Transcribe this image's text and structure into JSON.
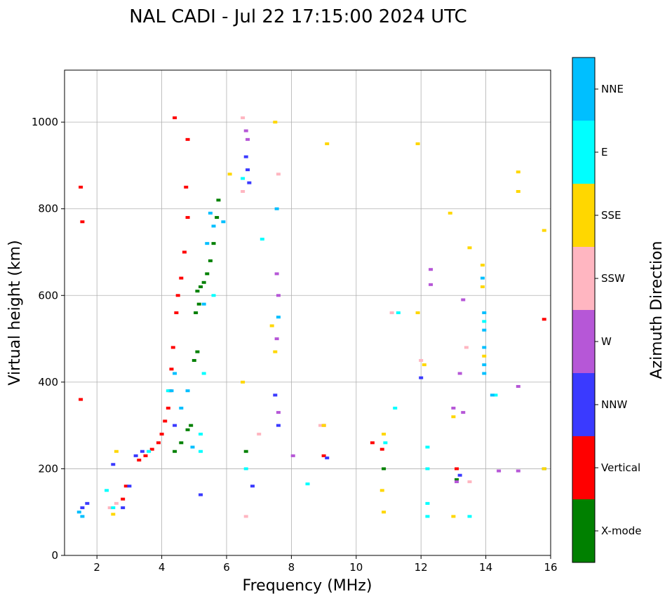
{
  "chart_data": {
    "type": "scatter",
    "title": "NAL CADI - Jul 22 17:15:00 2024 UTC",
    "xlabel": "Frequency (MHz)",
    "ylabel": "Virtual height (km)",
    "xlim": [
      1.0,
      16.0
    ],
    "ylim": [
      0,
      1120
    ],
    "xticks": [
      2,
      4,
      6,
      8,
      10,
      12,
      14,
      16
    ],
    "yticks": [
      0,
      200,
      400,
      600,
      800,
      1000
    ],
    "grid": true,
    "colorbar": {
      "label": "Azimuth Direction",
      "categories": [
        {
          "name": "X-mode",
          "color": "#008000"
        },
        {
          "name": "Vertical",
          "color": "#ff0000"
        },
        {
          "name": "NNW",
          "color": "#3a3aff"
        },
        {
          "name": "W",
          "color": "#b657d7"
        },
        {
          "name": "SSW",
          "color": "#ffb6c1"
        },
        {
          "name": "SSE",
          "color": "#ffd700"
        },
        {
          "name": "E",
          "color": "#00ffff"
        },
        {
          "name": "NNE",
          "color": "#00bfff"
        }
      ]
    },
    "series": [
      {
        "name": "X-mode",
        "points": [
          [
            5.1,
            610
          ],
          [
            5.2,
            620
          ],
          [
            5.3,
            630
          ],
          [
            5.4,
            650
          ],
          [
            5.5,
            680
          ],
          [
            5.6,
            720
          ],
          [
            5.7,
            780
          ],
          [
            5.75,
            820
          ],
          [
            5.0,
            450
          ],
          [
            5.1,
            470
          ],
          [
            5.05,
            560
          ],
          [
            5.15,
            580
          ],
          [
            4.9,
            300
          ],
          [
            4.8,
            290
          ],
          [
            4.6,
            260
          ],
          [
            4.4,
            240
          ],
          [
            10.85,
            200
          ],
          [
            13.1,
            175
          ],
          [
            15.8,
            200
          ],
          [
            6.6,
            240
          ]
        ]
      },
      {
        "name": "Vertical",
        "points": [
          [
            3.3,
            220
          ],
          [
            3.5,
            230
          ],
          [
            3.7,
            245
          ],
          [
            3.9,
            260
          ],
          [
            4.0,
            280
          ],
          [
            4.1,
            310
          ],
          [
            4.2,
            340
          ],
          [
            4.25,
            380
          ],
          [
            4.3,
            430
          ],
          [
            4.35,
            480
          ],
          [
            4.45,
            560
          ],
          [
            4.5,
            600
          ],
          [
            4.6,
            640
          ],
          [
            4.7,
            700
          ],
          [
            4.8,
            780
          ],
          [
            4.75,
            850
          ],
          [
            4.4,
            1010
          ],
          [
            4.8,
            960
          ],
          [
            1.5,
            360
          ],
          [
            1.5,
            850
          ],
          [
            1.55,
            770
          ],
          [
            2.8,
            130
          ],
          [
            2.9,
            160
          ],
          [
            9.0,
            230
          ],
          [
            10.5,
            260
          ],
          [
            10.8,
            245
          ],
          [
            13.1,
            200
          ],
          [
            15.8,
            545
          ],
          [
            9.0,
            300
          ]
        ]
      },
      {
        "name": "NNW",
        "points": [
          [
            1.55,
            110
          ],
          [
            1.7,
            120
          ],
          [
            2.5,
            210
          ],
          [
            2.8,
            110
          ],
          [
            3.0,
            160
          ],
          [
            3.2,
            230
          ],
          [
            3.4,
            240
          ],
          [
            4.4,
            300
          ],
          [
            6.65,
            890
          ],
          [
            6.6,
            920
          ],
          [
            6.7,
            860
          ],
          [
            7.6,
            300
          ],
          [
            7.5,
            370
          ],
          [
            9.1,
            225
          ],
          [
            12.0,
            410
          ],
          [
            13.2,
            185
          ],
          [
            6.8,
            160
          ],
          [
            5.2,
            140
          ]
        ]
      },
      {
        "name": "W",
        "points": [
          [
            6.6,
            980
          ],
          [
            6.65,
            960
          ],
          [
            7.55,
            650
          ],
          [
            7.6,
            600
          ],
          [
            7.55,
            500
          ],
          [
            12.3,
            660
          ],
          [
            12.3,
            625
          ],
          [
            13.3,
            590
          ],
          [
            13.3,
            330
          ],
          [
            13.2,
            420
          ],
          [
            13.0,
            340
          ],
          [
            13.1,
            170
          ],
          [
            14.4,
            195
          ],
          [
            15.0,
            195
          ],
          [
            15.0,
            390
          ],
          [
            8.05,
            230
          ],
          [
            7.6,
            330
          ]
        ]
      },
      {
        "name": "SSW",
        "points": [
          [
            2.4,
            110
          ],
          [
            2.6,
            120
          ],
          [
            6.5,
            1010
          ],
          [
            6.5,
            840
          ],
          [
            7.0,
            280
          ],
          [
            8.9,
            300
          ],
          [
            11.1,
            560
          ],
          [
            12.0,
            450
          ],
          [
            13.4,
            480
          ],
          [
            13.5,
            170
          ],
          [
            7.6,
            880
          ],
          [
            6.6,
            90
          ]
        ]
      },
      {
        "name": "SSE",
        "points": [
          [
            2.6,
            240
          ],
          [
            2.5,
            95
          ],
          [
            7.5,
            1000
          ],
          [
            7.4,
            530
          ],
          [
            7.5,
            470
          ],
          [
            9.1,
            950
          ],
          [
            9.0,
            300
          ],
          [
            10.85,
            280
          ],
          [
            10.8,
            150
          ],
          [
            10.85,
            100
          ],
          [
            11.9,
            560
          ],
          [
            11.9,
            950
          ],
          [
            12.1,
            440
          ],
          [
            13.0,
            320
          ],
          [
            13.0,
            90
          ],
          [
            12.9,
            790
          ],
          [
            13.5,
            710
          ],
          [
            13.9,
            620
          ],
          [
            13.9,
            670
          ],
          [
            13.95,
            460
          ],
          [
            15.0,
            840
          ],
          [
            15.0,
            885
          ],
          [
            15.8,
            750
          ],
          [
            15.8,
            200
          ],
          [
            6.5,
            400
          ],
          [
            6.1,
            880
          ]
        ]
      },
      {
        "name": "E",
        "points": [
          [
            2.3,
            150
          ],
          [
            2.5,
            110
          ],
          [
            3.6,
            240
          ],
          [
            4.2,
            380
          ],
          [
            5.2,
            240
          ],
          [
            5.3,
            420
          ],
          [
            5.6,
            600
          ],
          [
            5.2,
            280
          ],
          [
            8.5,
            165
          ],
          [
            10.9,
            260
          ],
          [
            11.2,
            340
          ],
          [
            12.2,
            250
          ],
          [
            12.2,
            200
          ],
          [
            12.2,
            120
          ],
          [
            12.2,
            90
          ],
          [
            13.5,
            90
          ],
          [
            13.95,
            540
          ],
          [
            14.3,
            370
          ],
          [
            6.5,
            870
          ],
          [
            6.6,
            200
          ],
          [
            7.1,
            730
          ],
          [
            11.3,
            560
          ]
        ]
      },
      {
        "name": "NNE",
        "points": [
          [
            1.45,
            100
          ],
          [
            1.55,
            90
          ],
          [
            4.3,
            380
          ],
          [
            4.4,
            420
          ],
          [
            4.6,
            340
          ],
          [
            4.8,
            380
          ],
          [
            4.95,
            250
          ],
          [
            5.3,
            580
          ],
          [
            5.4,
            720
          ],
          [
            5.5,
            790
          ],
          [
            5.6,
            760
          ],
          [
            5.9,
            770
          ],
          [
            7.6,
            550
          ],
          [
            7.55,
            800
          ],
          [
            13.95,
            560
          ],
          [
            13.95,
            520
          ],
          [
            13.95,
            480
          ],
          [
            13.95,
            440
          ],
          [
            13.95,
            420
          ],
          [
            13.9,
            640
          ],
          [
            14.2,
            370
          ]
        ]
      }
    ]
  }
}
